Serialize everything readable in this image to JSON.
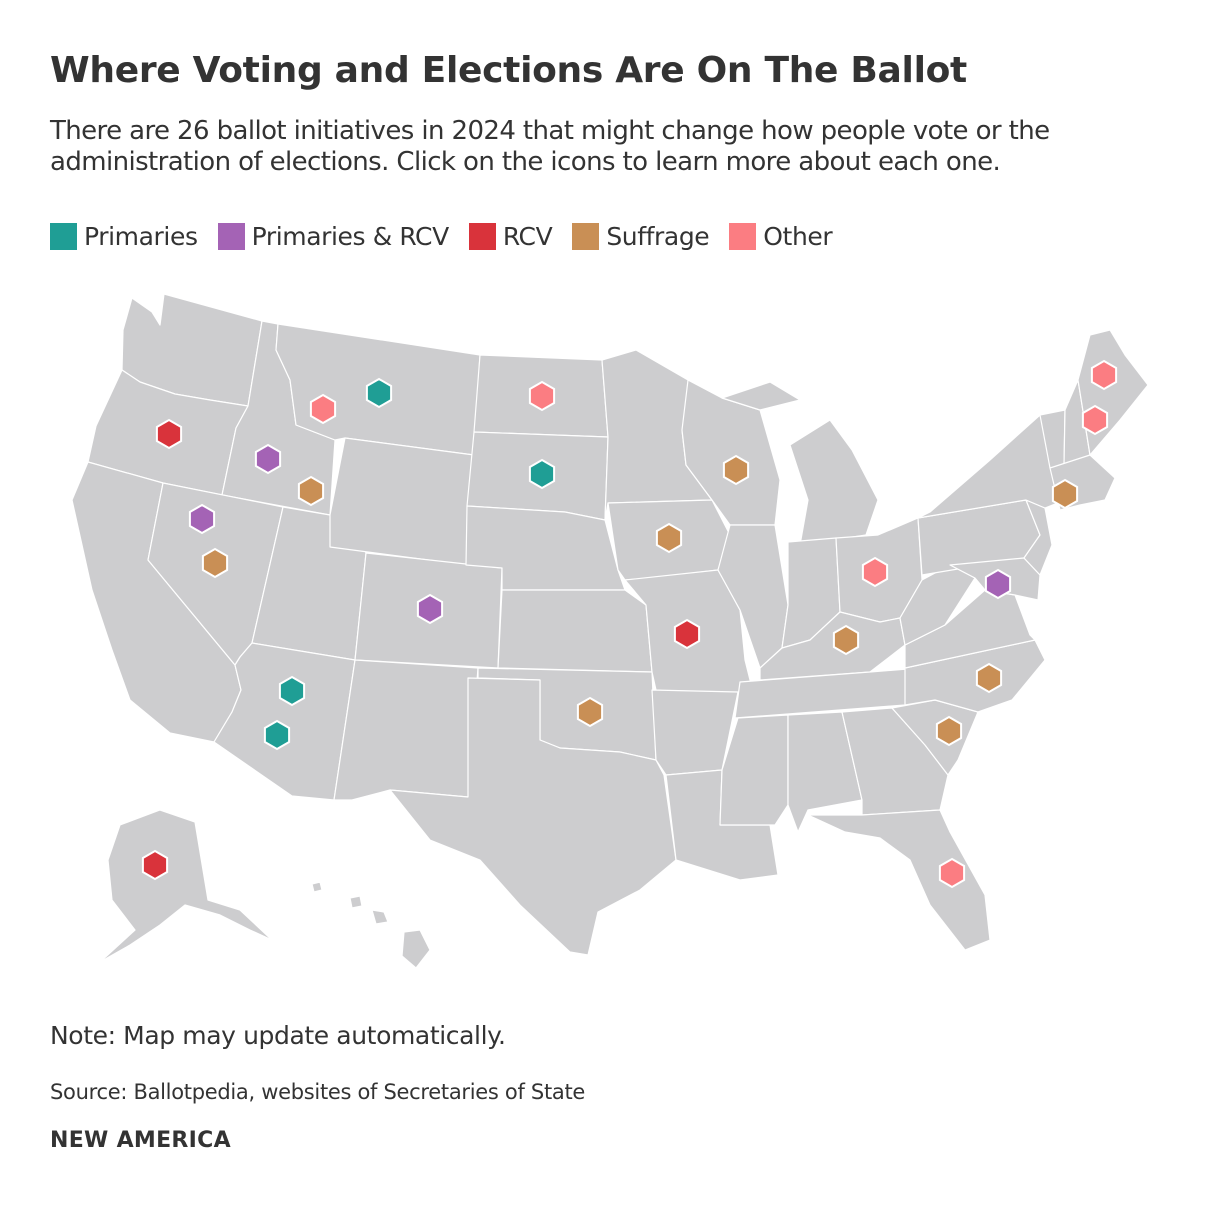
{
  "title": "Where Voting and Elections Are On The Ballot",
  "subtitle": "There are 26 ballot initiatives in 2024 that might change how people vote or the administration of elections. Click on the icons to learn more about each one.",
  "legend": [
    {
      "label": "Primaries",
      "color": "#1f9e95",
      "icon": "square"
    },
    {
      "label": "Primaries & RCV",
      "color": "#a463b5",
      "icon": "square"
    },
    {
      "label": "RCV",
      "color": "#d9333b",
      "icon": "square"
    },
    {
      "label": "Suffrage",
      "color": "#c98f55",
      "icon": "square"
    },
    {
      "label": "Other",
      "color": "#fb7d82",
      "icon": "square"
    }
  ],
  "map": {
    "base_color": "#cdcdcf",
    "border_color": "#ffffff",
    "marker_shape": "hexagon",
    "markers": [
      {
        "state": "Oregon",
        "category": "RCV"
      },
      {
        "state": "Idaho",
        "category": "Primaries & RCV"
      },
      {
        "state": "Idaho",
        "category": "Suffrage"
      },
      {
        "state": "Montana",
        "category": "Other"
      },
      {
        "state": "Montana",
        "category": "Primaries"
      },
      {
        "state": "Nevada",
        "category": "Primaries & RCV"
      },
      {
        "state": "Nevada",
        "category": "Suffrage"
      },
      {
        "state": "North Dakota",
        "category": "Other"
      },
      {
        "state": "South Dakota",
        "category": "Primaries"
      },
      {
        "state": "Colorado",
        "category": "Primaries & RCV"
      },
      {
        "state": "Arizona",
        "category": "Primaries"
      },
      {
        "state": "Arizona",
        "category": "Primaries"
      },
      {
        "state": "Oklahoma",
        "category": "Suffrage"
      },
      {
        "state": "Iowa",
        "category": "Suffrage"
      },
      {
        "state": "Wisconsin",
        "category": "Suffrage"
      },
      {
        "state": "Missouri",
        "category": "RCV"
      },
      {
        "state": "Kentucky",
        "category": "Suffrage"
      },
      {
        "state": "Ohio",
        "category": "Other"
      },
      {
        "state": "District of Columbia",
        "category": "Primaries & RCV"
      },
      {
        "state": "North Carolina",
        "category": "Suffrage"
      },
      {
        "state": "South Carolina",
        "category": "Suffrage"
      },
      {
        "state": "Florida",
        "category": "Other"
      },
      {
        "state": "Connecticut",
        "category": "Suffrage"
      },
      {
        "state": "Maine",
        "category": "Other"
      },
      {
        "state": "Maine",
        "category": "Other"
      },
      {
        "state": "Alaska",
        "category": "RCV"
      }
    ]
  },
  "note": "Note: Map may update automatically.",
  "source": "Source: Ballotpedia, websites of Secretaries of State",
  "brand": "NEW AMERICA"
}
